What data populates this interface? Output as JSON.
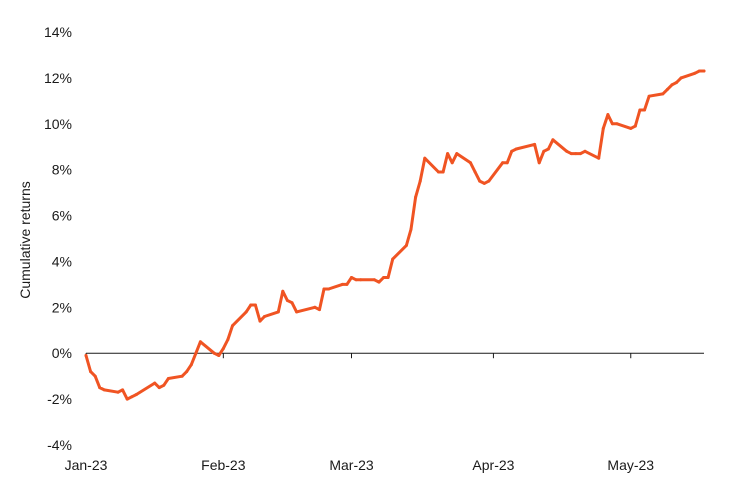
{
  "chart_data": {
    "type": "line",
    "title": "",
    "xlabel": "",
    "ylabel": "Cumulative returns",
    "ylim": [
      -4,
      14
    ],
    "y_ticks": [
      -4,
      -2,
      0,
      2,
      4,
      6,
      8,
      10,
      12,
      14
    ],
    "y_tick_labels": [
      "-4%",
      "-2%",
      "0%",
      "2%",
      "4%",
      "6%",
      "8%",
      "10%",
      "12%",
      "14%"
    ],
    "x_range": [
      "2023-01-02",
      "2023-05-17"
    ],
    "x_ticks": [
      "2023-01-02",
      "2023-02-01",
      "2023-03-01",
      "2023-04-01",
      "2023-05-01"
    ],
    "x_tick_labels": [
      "Jan-23",
      "Feb-23",
      "Mar-23",
      "Apr-23",
      "May-23"
    ],
    "grid": false,
    "legend": "none",
    "colors": {
      "line": "#f05423",
      "axis": "#1a1a1a"
    },
    "series": [
      {
        "x": [
          "2023-01-02",
          "2023-01-03",
          "2023-01-04",
          "2023-01-05",
          "2023-01-06",
          "2023-01-09",
          "2023-01-10",
          "2023-01-11",
          "2023-01-12",
          "2023-01-13",
          "2023-01-17",
          "2023-01-18",
          "2023-01-19",
          "2023-01-20",
          "2023-01-23",
          "2023-01-24",
          "2023-01-25",
          "2023-01-26",
          "2023-01-27",
          "2023-01-30",
          "2023-01-31",
          "2023-02-01",
          "2023-02-02",
          "2023-02-03",
          "2023-02-06",
          "2023-02-07",
          "2023-02-08",
          "2023-02-09",
          "2023-02-10",
          "2023-02-13",
          "2023-02-14",
          "2023-02-15",
          "2023-02-16",
          "2023-02-17",
          "2023-02-21",
          "2023-02-22",
          "2023-02-23",
          "2023-02-24",
          "2023-02-27",
          "2023-02-28",
          "2023-03-01",
          "2023-03-02",
          "2023-03-03",
          "2023-03-06",
          "2023-03-07",
          "2023-03-08",
          "2023-03-09",
          "2023-03-10",
          "2023-03-13",
          "2023-03-14",
          "2023-03-15",
          "2023-03-16",
          "2023-03-17",
          "2023-03-20",
          "2023-03-21",
          "2023-03-22",
          "2023-03-23",
          "2023-03-24",
          "2023-03-27",
          "2023-03-28",
          "2023-03-29",
          "2023-03-30",
          "2023-03-31",
          "2023-04-03",
          "2023-04-04",
          "2023-04-05",
          "2023-04-06",
          "2023-04-10",
          "2023-04-11",
          "2023-04-12",
          "2023-04-13",
          "2023-04-14",
          "2023-04-17",
          "2023-04-18",
          "2023-04-19",
          "2023-04-20",
          "2023-04-21",
          "2023-04-24",
          "2023-04-25",
          "2023-04-26",
          "2023-04-27",
          "2023-04-28",
          "2023-05-01",
          "2023-05-02",
          "2023-05-03",
          "2023-05-04",
          "2023-05-05",
          "2023-05-08",
          "2023-05-09",
          "2023-05-10",
          "2023-05-11",
          "2023-05-12",
          "2023-05-15",
          "2023-05-16",
          "2023-05-17"
        ],
        "values": [
          -0.1,
          -0.8,
          -1.0,
          -1.5,
          -1.6,
          -1.7,
          -1.6,
          -2.0,
          -1.9,
          -1.8,
          -1.3,
          -1.5,
          -1.4,
          -1.1,
          -1.0,
          -0.8,
          -0.5,
          0.0,
          0.5,
          0.0,
          -0.1,
          0.2,
          0.6,
          1.2,
          1.8,
          2.1,
          2.1,
          1.4,
          1.6,
          1.8,
          2.7,
          2.3,
          2.2,
          1.8,
          2.0,
          1.9,
          2.8,
          2.8,
          3.0,
          3.0,
          3.3,
          3.2,
          3.2,
          3.2,
          3.1,
          3.3,
          3.3,
          4.1,
          4.7,
          5.4,
          6.8,
          7.5,
          8.5,
          7.9,
          7.9,
          8.7,
          8.3,
          8.7,
          8.3,
          7.9,
          7.5,
          7.4,
          7.5,
          8.3,
          8.3,
          8.8,
          8.9,
          9.1,
          8.3,
          8.8,
          8.9,
          9.3,
          8.8,
          8.7,
          8.7,
          8.7,
          8.8,
          8.5,
          9.8,
          10.4,
          10.0,
          10.0,
          9.8,
          9.9,
          10.6,
          10.6,
          11.2,
          11.3,
          11.5,
          11.7,
          11.8,
          12.0,
          12.2,
          12.3,
          12.3
        ]
      }
    ]
  }
}
